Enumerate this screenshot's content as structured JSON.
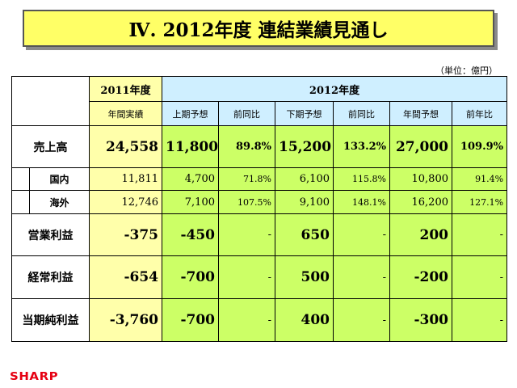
{
  "title": "Ⅳ. 2012年度 連結業績見通し",
  "unit_note": "（単位：億円）",
  "header": {
    "fy2011": "2011年度",
    "fy2011_sub": "年間実績",
    "fy2012": "2012年度",
    "h1_forecast": "上期予想",
    "h1_yoy": "前同比",
    "h2_forecast": "下期予想",
    "h2_yoy": "前同比",
    "full_forecast": "年間予想",
    "full_yoy": "前年比"
  },
  "rows": [
    {
      "label": "売上高",
      "fy2011": "24,558",
      "h1": "11,800",
      "h1_yoy": "89.8%",
      "h2": "15,200",
      "h2_yoy": "133.2%",
      "full": "27,000",
      "full_yoy": "109.9%"
    },
    {
      "label": "国内",
      "fy2011": "11,811",
      "h1": "4,700",
      "h1_yoy": "71.8%",
      "h2": "6,100",
      "h2_yoy": "115.8%",
      "full": "10,800",
      "full_yoy": "91.4%"
    },
    {
      "label": "海外",
      "fy2011": "12,746",
      "h1": "7,100",
      "h1_yoy": "107.5%",
      "h2": "9,100",
      "h2_yoy": "148.1%",
      "full": "16,200",
      "full_yoy": "127.1%"
    },
    {
      "label": "営業利益",
      "fy2011": "-375",
      "h1": "-450",
      "h1_yoy": "-",
      "h2": "650",
      "h2_yoy": "-",
      "full": "200",
      "full_yoy": "-"
    },
    {
      "label": "経常利益",
      "fy2011": "-654",
      "h1": "-700",
      "h1_yoy": "-",
      "h2": "500",
      "h2_yoy": "-",
      "full": "-200",
      "full_yoy": "-"
    },
    {
      "label": "当期純利益",
      "fy2011": "-3,760",
      "h1": "-700",
      "h1_yoy": "-",
      "h2": "400",
      "h2_yoy": "-",
      "full": "-300",
      "full_yoy": "-"
    }
  ],
  "logo": "SHARP",
  "colors": {
    "title_bg": "#ffff66",
    "fy2011_bg": "#ffffaa",
    "fy2012_header_bg": "#cfefff",
    "fy2012_cell_bg": "#ccff66",
    "logo": "#e60012"
  }
}
